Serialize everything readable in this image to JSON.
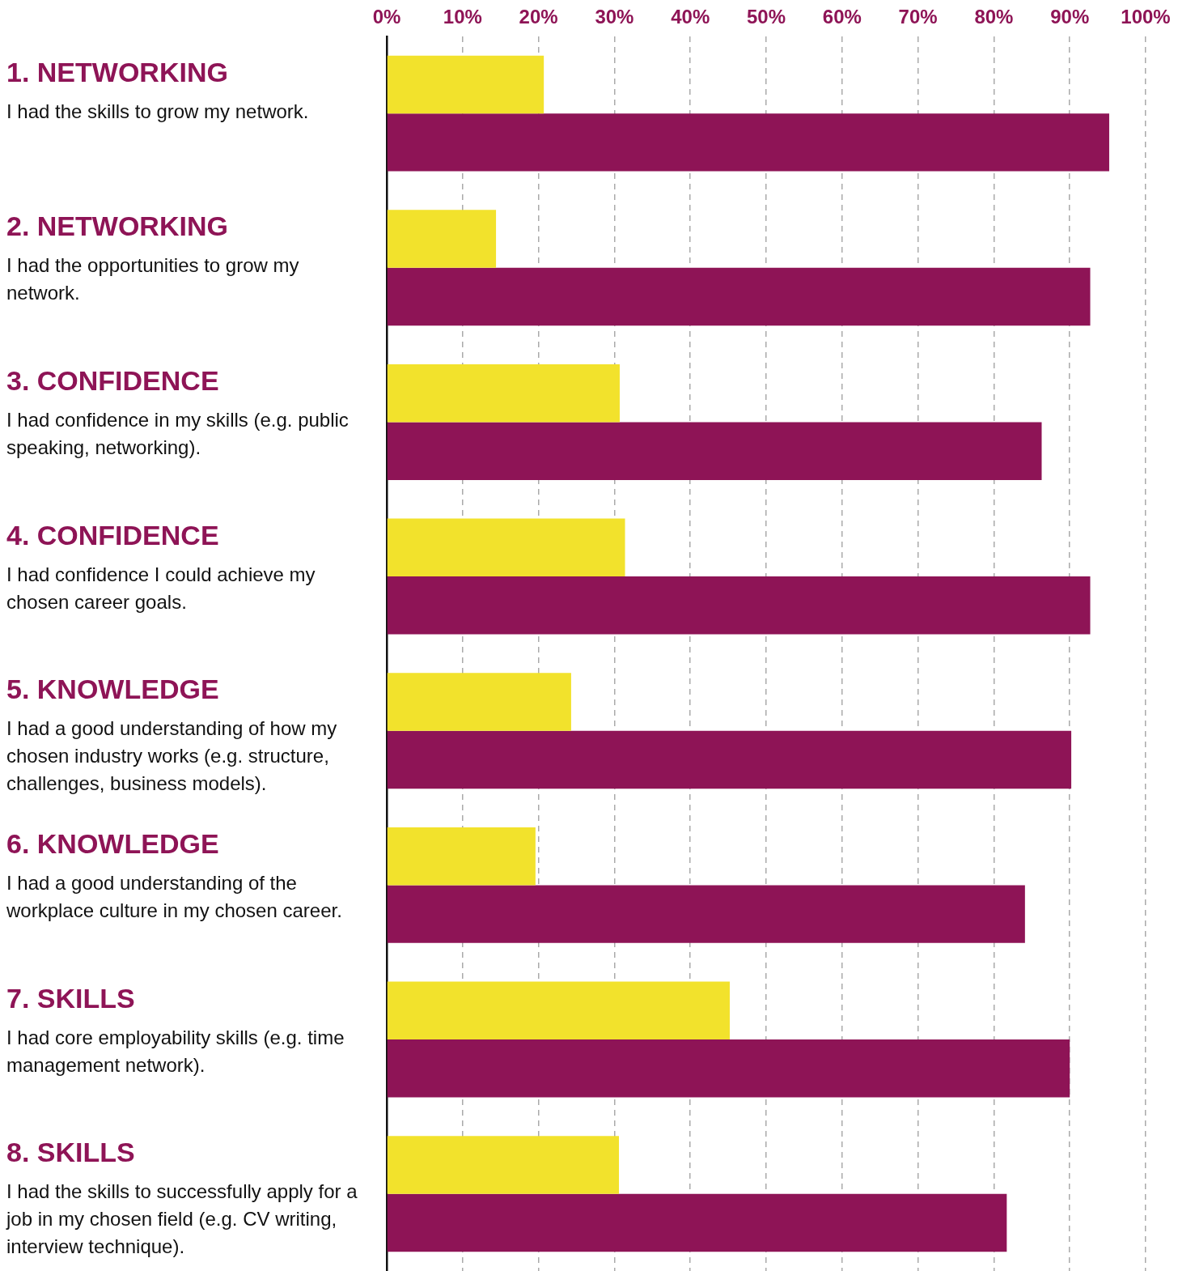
{
  "chart_data": {
    "type": "bar",
    "orientation": "horizontal",
    "grid": "x",
    "categories": [
      "1. NETWORKING\nI had the skills to grow my network.",
      "2. NETWORKING\nI had the opportunities to grow my network.",
      "3. CONFIDENCE\nI had confidence in my skills (e.g. public speaking, networking).",
      "4. CONFIDENCE\nI had confidence I could achieve my chosen career goals.",
      "5. KNOWLEDGE\nI had a good understanding of how my chosen industry works (e.g. structure, challenges, business models).",
      "6. KNOWLEDGE\nI had a good understanding of the workplace culture in my chosen career.",
      "7. SKILLS\nI had core employability skills (e.g. time management network).",
      "8. SKILLS\nI had the skills to successfully apply for a job in my chosen field (e.g. CV writing, interview technique)."
    ],
    "series": [
      {
        "color": "#f2e22c",
        "values": [
          20.7,
          14.4,
          30.7,
          31.4,
          24.3,
          19.6,
          45.2,
          30.6
        ]
      },
      {
        "color": "#8e1456",
        "values": [
          95.2,
          92.7,
          86.3,
          92.7,
          90.2,
          84.1,
          90.0,
          81.7
        ]
      }
    ],
    "xlim": [
      0,
      100
    ],
    "xticks": [
      {
        "value": 0,
        "label": "0%"
      },
      {
        "value": 10,
        "label": "10%"
      },
      {
        "value": 20,
        "label": "20%"
      },
      {
        "value": 30,
        "label": "30%"
      },
      {
        "value": 40,
        "label": "40%"
      },
      {
        "value": 50,
        "label": "50%"
      },
      {
        "value": 60,
        "label": "60%"
      },
      {
        "value": 70,
        "label": "70%"
      },
      {
        "value": 80,
        "label": "80%"
      },
      {
        "value": 90,
        "label": "90%"
      },
      {
        "value": 100,
        "label": "100%"
      }
    ]
  }
}
